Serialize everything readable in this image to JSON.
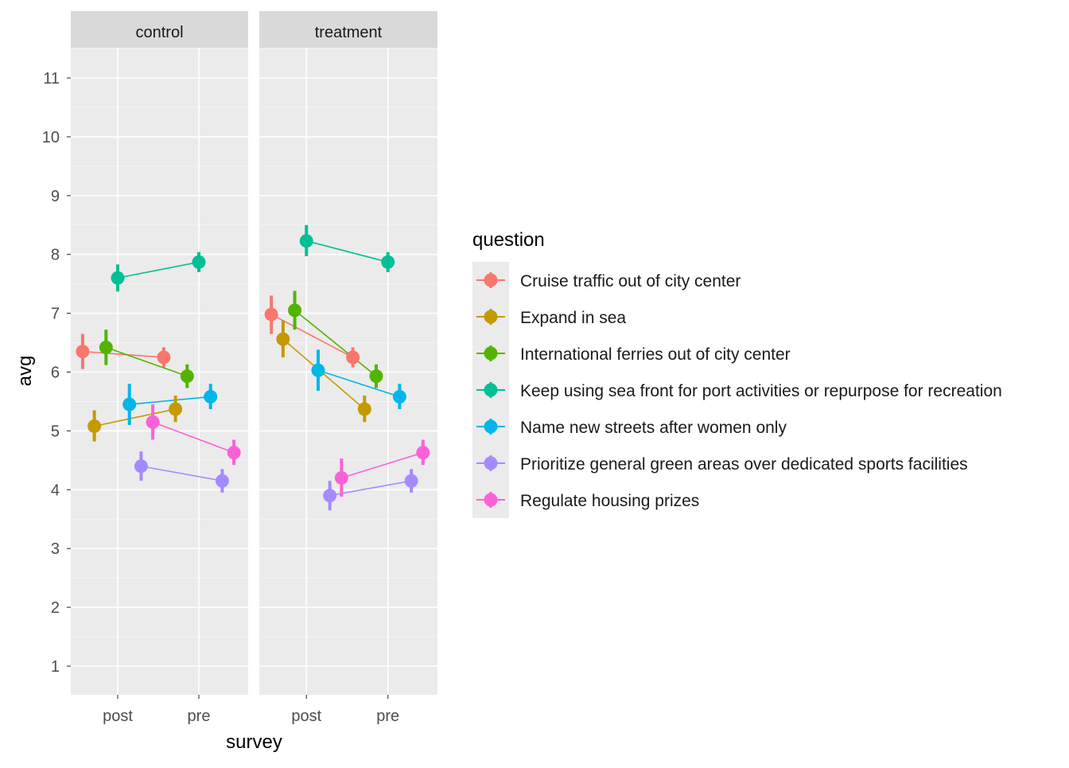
{
  "chart_data": {
    "type": "pointrange-line",
    "facets": [
      "control",
      "treatment"
    ],
    "xlabel": "survey",
    "ylabel": "avg",
    "x_categories": [
      "post",
      "pre"
    ],
    "yticks": [
      1,
      2,
      3,
      4,
      5,
      6,
      7,
      8,
      9,
      10,
      11
    ],
    "ylim": [
      0.5,
      11.5
    ],
    "grid": true,
    "legend": {
      "title": "question",
      "position": "right"
    },
    "series": [
      {
        "name": "Cruise traffic out of city center",
        "color": "#F8766D",
        "data": {
          "control": {
            "post": {
              "y": 6.35,
              "lo": 6.05,
              "hi": 6.65
            },
            "pre": {
              "y": 6.25,
              "lo": 6.08,
              "hi": 6.42
            }
          },
          "treatment": {
            "post": {
              "y": 6.98,
              "lo": 6.65,
              "hi": 7.3
            },
            "pre": {
              "y": 6.25,
              "lo": 6.08,
              "hi": 6.42
            }
          }
        }
      },
      {
        "name": "Expand in sea",
        "color": "#C49A00",
        "data": {
          "control": {
            "post": {
              "y": 5.08,
              "lo": 4.82,
              "hi": 5.35
            },
            "pre": {
              "y": 5.37,
              "lo": 5.15,
              "hi": 5.6
            }
          },
          "treatment": {
            "post": {
              "y": 6.56,
              "lo": 6.25,
              "hi": 6.88
            },
            "pre": {
              "y": 5.37,
              "lo": 5.15,
              "hi": 5.6
            }
          }
        }
      },
      {
        "name": "International ferries out of city center",
        "color": "#53B400",
        "data": {
          "control": {
            "post": {
              "y": 6.42,
              "lo": 6.12,
              "hi": 6.72
            },
            "pre": {
              "y": 5.93,
              "lo": 5.73,
              "hi": 6.13
            }
          },
          "treatment": {
            "post": {
              "y": 7.05,
              "lo": 6.72,
              "hi": 7.38
            },
            "pre": {
              "y": 5.93,
              "lo": 5.73,
              "hi": 6.13
            }
          }
        }
      },
      {
        "name": "Keep using sea front for port activities or repurpose for recreation",
        "color": "#00C094",
        "data": {
          "control": {
            "post": {
              "y": 7.6,
              "lo": 7.37,
              "hi": 7.83
            },
            "pre": {
              "y": 7.87,
              "lo": 7.7,
              "hi": 8.04
            }
          },
          "treatment": {
            "post": {
              "y": 8.23,
              "lo": 7.97,
              "hi": 8.5
            },
            "pre": {
              "y": 7.87,
              "lo": 7.7,
              "hi": 8.04
            }
          }
        }
      },
      {
        "name": "Name new streets after women only",
        "color": "#00B6EB",
        "data": {
          "control": {
            "post": {
              "y": 5.45,
              "lo": 5.1,
              "hi": 5.8
            },
            "pre": {
              "y": 5.58,
              "lo": 5.37,
              "hi": 5.8
            }
          },
          "treatment": {
            "post": {
              "y": 6.03,
              "lo": 5.68,
              "hi": 6.38
            },
            "pre": {
              "y": 5.58,
              "lo": 5.37,
              "hi": 5.8
            }
          }
        }
      },
      {
        "name": "Prioritize general green areas over dedicated sports facilities",
        "color": "#A58AFF",
        "data": {
          "control": {
            "post": {
              "y": 4.4,
              "lo": 4.15,
              "hi": 4.65
            },
            "pre": {
              "y": 4.15,
              "lo": 3.95,
              "hi": 4.35
            }
          },
          "treatment": {
            "post": {
              "y": 3.9,
              "lo": 3.65,
              "hi": 4.15
            },
            "pre": {
              "y": 4.15,
              "lo": 3.95,
              "hi": 4.35
            }
          }
        }
      },
      {
        "name": "Regulate housing prizes",
        "color": "#FB61D7",
        "data": {
          "control": {
            "post": {
              "y": 5.15,
              "lo": 4.85,
              "hi": 5.45
            },
            "pre": {
              "y": 4.63,
              "lo": 4.42,
              "hi": 4.85
            }
          },
          "treatment": {
            "post": {
              "y": 4.2,
              "lo": 3.88,
              "hi": 4.53
            },
            "pre": {
              "y": 4.63,
              "lo": 4.42,
              "hi": 4.85
            }
          }
        }
      }
    ]
  }
}
